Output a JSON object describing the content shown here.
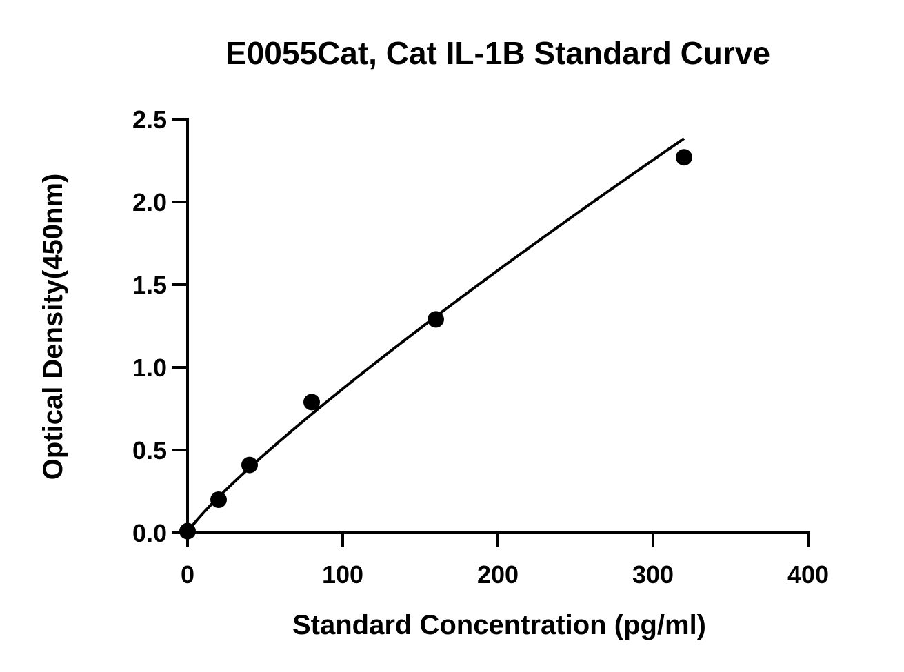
{
  "chart_data": {
    "type": "scatter",
    "title": "E0055Cat, Cat IL-1B Standard Curve",
    "xlabel": "Standard Concentration (pg/ml)",
    "ylabel": "Optical Density(450nm)",
    "xlim": [
      0,
      400
    ],
    "ylim": [
      0,
      2.5
    ],
    "xticks": [
      0,
      100,
      200,
      300,
      400
    ],
    "yticks": [
      0.0,
      0.5,
      1.0,
      1.5,
      2.0,
      2.5
    ],
    "xtick_labels": [
      "0",
      "100",
      "200",
      "300",
      "400"
    ],
    "ytick_labels": [
      "0.0",
      "0.5",
      "1.0",
      "1.5",
      "2.0",
      "2.5"
    ],
    "grid": false,
    "series": [
      {
        "x": [
          0,
          20,
          40,
          80,
          160,
          320
        ],
        "y": [
          0.01,
          0.2,
          0.41,
          0.79,
          1.29,
          2.27
        ],
        "fit": "smooth curve"
      }
    ]
  }
}
